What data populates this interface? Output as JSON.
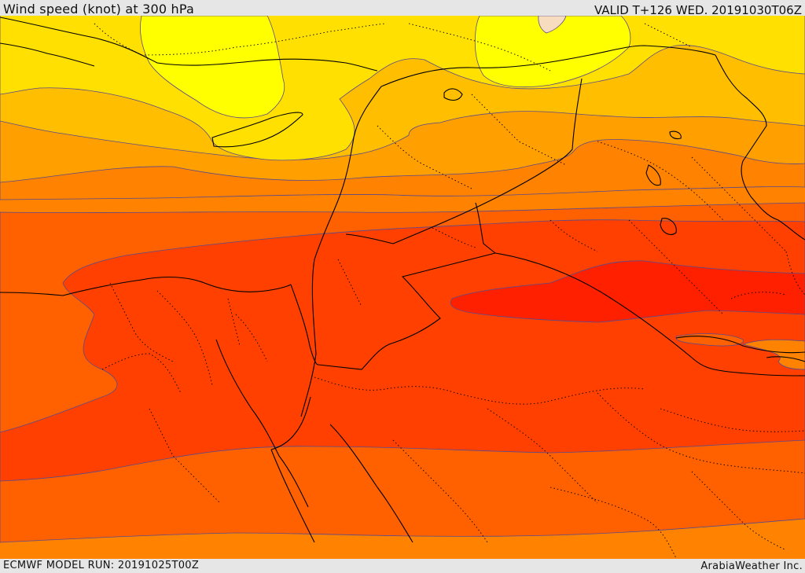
{
  "header": {
    "title": "Wind speed (knot) at 300 hPa",
    "valid": "VALID T+126 WED. 20191030T06Z"
  },
  "footer": {
    "model_run": "ECMWF MODEL RUN: 20191025T00Z",
    "credit": "ArabiaWeather Inc."
  },
  "colors": {
    "cream": "#f8dcc0",
    "yellow": "#ffff00",
    "gold": "#ffe000",
    "amber": "#ffbf00",
    "orange_light": "#ffa000",
    "orange": "#ff8200",
    "orange_dark": "#ff6000",
    "red_orange": "#ff4000",
    "red": "#ff2000",
    "contour_line": "#5a4a8a",
    "border_line": "#000000"
  }
}
